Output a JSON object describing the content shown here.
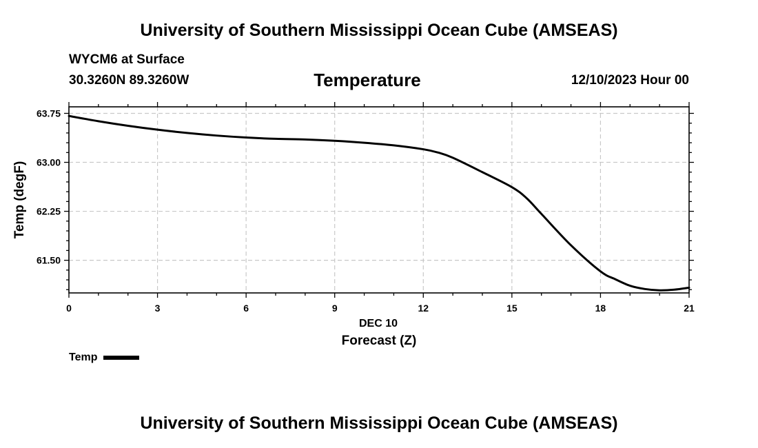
{
  "header": {
    "title": "University of Southern Mississippi Ocean Cube (AMSEAS)",
    "station": "WYCM6 at Surface",
    "coords": "30.3260N  89.3260W",
    "parameter": "Temperature",
    "datetime": "12/10/2023 Hour 00"
  },
  "footer": {
    "title": "University of Southern Mississippi Ocean Cube (AMSEAS)"
  },
  "legend": {
    "label": "Temp",
    "color": "#000000"
  },
  "chart_data": {
    "type": "line",
    "title": "Temperature",
    "xlabel": "Forecast (Z)",
    "x_date_label": "DEC 10",
    "ylabel": "Temp (degF)",
    "xlim": [
      0,
      21
    ],
    "ylim": [
      61.0,
      63.85
    ],
    "x_ticks": [
      0,
      3,
      6,
      9,
      12,
      15,
      18,
      21
    ],
    "y_ticks": [
      61.5,
      62.25,
      63.0,
      63.75
    ],
    "y_tick_labels": [
      "61.50",
      "62.25",
      "63.00",
      "63.75"
    ],
    "grid": true,
    "series": [
      {
        "name": "Temp",
        "color": "#000000",
        "x": [
          0,
          1,
          2,
          3,
          4,
          5,
          6,
          7,
          8,
          9,
          10,
          11,
          12,
          12.5,
          13,
          14,
          15,
          15.5,
          16,
          17,
          18,
          18.5,
          19,
          19.5,
          20,
          20.5,
          21
        ],
        "y": [
          63.71,
          63.63,
          63.56,
          63.5,
          63.45,
          63.41,
          63.38,
          63.36,
          63.35,
          63.33,
          63.3,
          63.26,
          63.2,
          63.15,
          63.07,
          62.85,
          62.62,
          62.45,
          62.21,
          61.73,
          61.33,
          61.21,
          61.11,
          61.06,
          61.04,
          61.05,
          61.08
        ]
      }
    ]
  }
}
